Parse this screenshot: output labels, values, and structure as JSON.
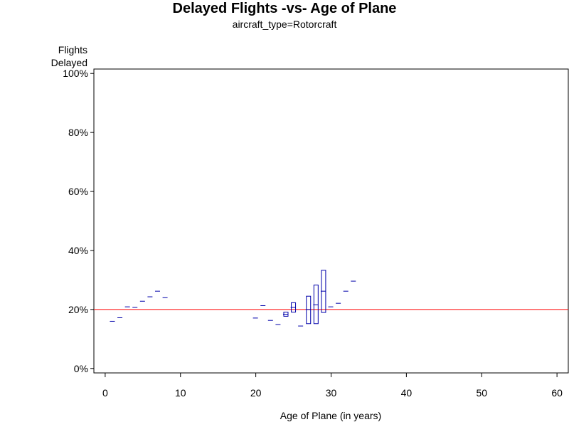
{
  "chart_data": {
    "type": "scatter",
    "title": "Delayed Flights -vs- Age of Plane",
    "subtitle": "aircraft_type=Rotorcraft",
    "ylabel_line1": "Flights",
    "ylabel_line2": "Delayed",
    "xlabel": "Age of Plane (in years)",
    "xlim": [
      -1.5,
      61.5
    ],
    "ylim": [
      -0.015,
      1.015
    ],
    "x_ticks": [
      0,
      10,
      20,
      30,
      40,
      50,
      60
    ],
    "y_ticks": [
      0,
      0.2,
      0.4,
      0.6,
      0.8,
      1.0
    ],
    "y_tick_labels": [
      "0%",
      "20%",
      "40%",
      "60%",
      "80%",
      "100%"
    ],
    "x_tick_labels": [
      "0",
      "10",
      "20",
      "30",
      "40",
      "50",
      "60"
    ],
    "reference_line": {
      "y": 0.2,
      "color": "#ff0000"
    },
    "series_color": "#0000aa",
    "points": [
      {
        "x": 1,
        "y": 0.16
      },
      {
        "x": 2,
        "y": 0.172
      },
      {
        "x": 3,
        "y": 0.209
      },
      {
        "x": 4,
        "y": 0.207
      },
      {
        "x": 5,
        "y": 0.228
      },
      {
        "x": 6,
        "y": 0.243
      },
      {
        "x": 7,
        "y": 0.262
      },
      {
        "x": 8,
        "y": 0.24
      },
      {
        "x": 20,
        "y": 0.171
      },
      {
        "x": 21,
        "y": 0.213
      },
      {
        "x": 22,
        "y": 0.163
      },
      {
        "x": 23,
        "y": 0.149
      },
      {
        "x": 24,
        "y": 0.184,
        "low": 0.177,
        "high": 0.191
      },
      {
        "x": 25,
        "y": 0.207,
        "low": 0.191,
        "high": 0.223
      },
      {
        "x": 26,
        "y": 0.144
      },
      {
        "x": 27,
        "y": 0.2,
        "low": 0.152,
        "high": 0.245
      },
      {
        "x": 28,
        "y": 0.216,
        "low": 0.152,
        "high": 0.283
      },
      {
        "x": 29,
        "y": 0.262,
        "low": 0.19,
        "high": 0.333
      },
      {
        "x": 30,
        "y": 0.209
      },
      {
        "x": 31,
        "y": 0.221
      },
      {
        "x": 32,
        "y": 0.262
      },
      {
        "x": 33,
        "y": 0.296
      }
    ]
  }
}
